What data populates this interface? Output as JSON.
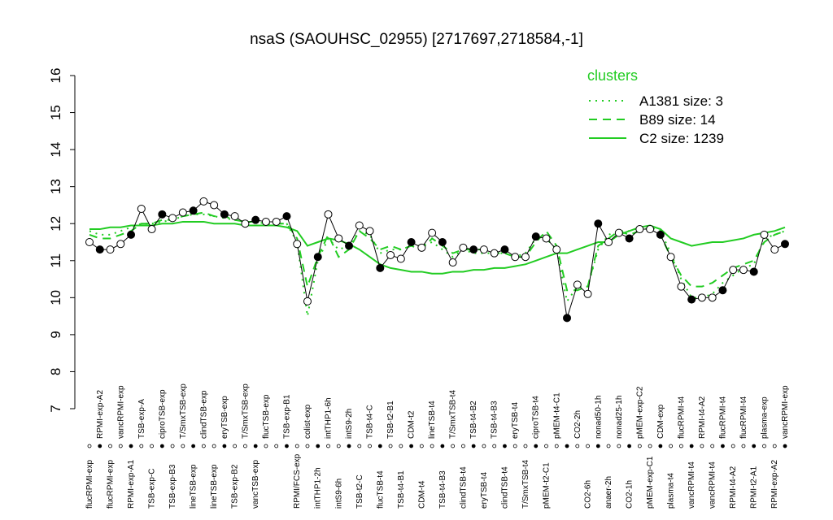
{
  "chart_data": {
    "type": "line",
    "title": "nsaS (SAOUHSC_02955) [2717697,2718584,-1]",
    "categories": [
      "flucRPMI-exp",
      "RPMI-exp-A2",
      "flucRPMI-exp",
      "vancRPMI-exp",
      "RPMI-exp-A1",
      "TSB-exp-A",
      "TSB-exp-C",
      "ciproTSB-exp",
      "TSB-exp-B3",
      "T/SmxTSB-exp",
      "lineTSB-exp",
      "clindTSB-exp",
      "lineTSB-exp",
      "eryTSB-exp",
      "TSB-exp-B2",
      "T/SmxTSB-exp",
      "vancTSB-exp",
      "flucTSB-exp",
      null,
      "TSB-exp-B1",
      "RPMI/FCS-exp",
      "colist-exp",
      "intTHP1-2h",
      "intTHP1-6h",
      "intS9-6h",
      "intS9-2h",
      "TSB-t2-C",
      "TSB-t4-C",
      "flucTSB-t4",
      "TSB-t2-B1",
      "TSB-t4-B1",
      "CDM-t2",
      "CDM-t4",
      "lineTSB-t4",
      "TSB-t4-B3",
      "T/SmxTSB-t4",
      "clindTSB-t4",
      "TSB-t4-B2",
      "eryTSB-t4",
      "TSB-t4-B3",
      "clindTSB-t4",
      "eryTSB-t4",
      "T/SmxTSB-t4",
      "ciproTSB-t4",
      "pMEM-t2-C1",
      "pMEM-t4-C1",
      null,
      "CO2-2h",
      "CO2-6h",
      "nonad50-1h",
      "anaer-2h",
      "nonad25-1h",
      "CO2-1h",
      "pMEM-exp-C2",
      "pMEM-exp-C1",
      "CDM-exp",
      "plasma-t4",
      "flucRPMI-t4",
      "vancRPMI-t4",
      "RPMI-t4-A2",
      "vancRPMI-t4",
      "flucRPMI-t4",
      "RPMI-t4-A2",
      "flucRPMI-t4",
      "RPMI-t2-A1",
      "plasma-exp",
      "RPMI-exp-A2",
      "vancRPMI-exp"
    ],
    "values": [
      11.5,
      11.3,
      11.3,
      11.45,
      11.7,
      12.4,
      11.85,
      12.25,
      12.15,
      12.3,
      12.35,
      12.6,
      12.5,
      12.25,
      12.2,
      12.0,
      12.1,
      12.05,
      12.05,
      12.2,
      11.45,
      9.9,
      11.1,
      12.25,
      11.6,
      11.4,
      11.95,
      11.8,
      10.8,
      11.15,
      11.05,
      11.5,
      11.35,
      11.75,
      11.5,
      10.95,
      11.35,
      11.3,
      11.3,
      11.2,
      11.3,
      11.1,
      11.1,
      11.65,
      11.6,
      11.3,
      9.45,
      10.35,
      10.1,
      12.0,
      11.5,
      11.75,
      11.6,
      11.85,
      11.85,
      11.7,
      11.1,
      10.3,
      9.95,
      10.0,
      10.0,
      10.2,
      10.75,
      10.75,
      10.7,
      11.7,
      11.3,
      11.45
    ],
    "color": "#000000",
    "legend_title": "clusters",
    "legend": "topright",
    "series": [
      {
        "name": "A1381 size: 3",
        "color": "#22cc22",
        "dash": "dotted",
        "values": [
          11.8,
          11.7,
          11.7,
          11.8,
          11.9,
          12.0,
          12.0,
          12.05,
          12.1,
          12.2,
          12.25,
          12.25,
          12.2,
          12.15,
          12.1,
          12.05,
          12.05,
          12.0,
          12.0,
          12.0,
          11.5,
          9.5,
          11.0,
          11.6,
          11.3,
          11.4,
          11.8,
          11.7,
          11.2,
          11.3,
          11.3,
          11.4,
          11.4,
          11.5,
          11.3,
          11.1,
          11.3,
          11.2,
          11.2,
          11.2,
          11.2,
          11.1,
          11.2,
          11.6,
          11.6,
          11.3,
          9.9,
          10.3,
          10.3,
          11.3,
          11.7,
          11.8,
          11.8,
          11.9,
          11.9,
          11.8,
          11.2,
          10.5,
          10.0,
          10.0,
          10.1,
          10.4,
          10.6,
          10.8,
          10.9,
          11.6,
          11.7,
          11.8
        ]
      },
      {
        "name": "B89 size: 14",
        "color": "#22cc22",
        "dash": "dashed",
        "values": [
          11.7,
          11.6,
          11.6,
          11.7,
          11.8,
          12.0,
          12.0,
          12.1,
          12.1,
          12.2,
          12.25,
          12.3,
          12.2,
          12.2,
          12.1,
          12.05,
          12.05,
          12.0,
          12.0,
          12.0,
          11.6,
          10.3,
          11.1,
          11.7,
          11.1,
          11.3,
          11.8,
          11.6,
          11.3,
          11.4,
          11.3,
          11.4,
          11.3,
          11.6,
          11.4,
          11.2,
          11.3,
          11.3,
          11.3,
          11.2,
          11.2,
          11.1,
          11.1,
          11.5,
          11.8,
          11.4,
          10.2,
          10.2,
          10.3,
          11.4,
          11.6,
          11.8,
          11.7,
          11.8,
          11.9,
          11.7,
          11.1,
          10.6,
          10.3,
          10.3,
          10.4,
          10.6,
          10.8,
          10.9,
          11.0,
          11.5,
          11.7,
          11.8
        ]
      },
      {
        "name": "C2 size: 1239",
        "color": "#22cc22",
        "dash": "solid",
        "values": [
          11.85,
          11.85,
          11.9,
          11.9,
          11.95,
          11.95,
          11.95,
          12.0,
          12.0,
          12.05,
          12.05,
          12.05,
          12.0,
          12.0,
          12.0,
          11.95,
          11.95,
          11.95,
          11.95,
          11.9,
          11.8,
          11.4,
          11.5,
          11.6,
          11.55,
          11.45,
          11.3,
          11.1,
          10.9,
          10.8,
          10.75,
          10.7,
          10.7,
          10.65,
          10.65,
          10.7,
          10.7,
          10.75,
          10.75,
          10.8,
          10.8,
          10.85,
          10.9,
          11.0,
          11.1,
          11.2,
          11.2,
          11.3,
          11.4,
          11.5,
          11.5,
          11.7,
          11.8,
          11.9,
          11.95,
          11.85,
          11.6,
          11.5,
          11.4,
          11.45,
          11.5,
          11.5,
          11.55,
          11.6,
          11.7,
          11.75,
          11.8,
          11.9
        ]
      }
    ],
    "ylim": [
      7,
      16
    ],
    "yticks": [
      7,
      8,
      9,
      10,
      11,
      12,
      13,
      14,
      15,
      16
    ]
  }
}
